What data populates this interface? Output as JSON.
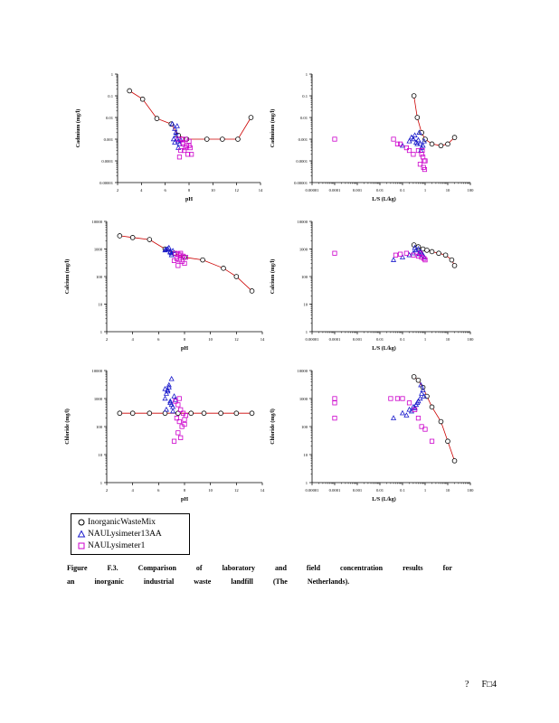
{
  "legend": {
    "items": [
      {
        "label": "InorganicWasteMix",
        "marker": "circle",
        "color": "#000000"
      },
      {
        "label": "NAULysimeter13AA",
        "marker": "triangle",
        "color": "#1a1acc"
      },
      {
        "label": "NAULysimeter1",
        "marker": "square",
        "color": "#cc00cc"
      }
    ]
  },
  "caption": {
    "words": [
      "Figure",
      "F.3.",
      "Comparison",
      "of",
      "laboratory",
      "and",
      "field",
      "concentration",
      "results",
      "for",
      "an",
      "inorganic",
      "industrial",
      "waste",
      "landfill",
      "(The",
      "Netherlands)."
    ]
  },
  "footer": {
    "mark": "?",
    "page": "F□4"
  },
  "colors": {
    "lab": "#000000",
    "lab_line": "#cc0000",
    "lys13": "#1a1acc",
    "lys1": "#cc00cc"
  },
  "chart_data": [
    {
      "type": "scatter",
      "ylabel": "Cadmium     (mg/l)",
      "xlabel": "pH",
      "x_scale": "linear",
      "xlim": [
        2,
        14
      ],
      "xticks": [
        "2",
        "4",
        "6",
        "8",
        "10",
        "12",
        "14"
      ],
      "y_scale": "log",
      "ylim": [
        1e-05,
        1
      ],
      "yticks": [
        "0.00001",
        "0.0001",
        "0.001",
        "0.01",
        "0.1",
        "1"
      ],
      "series": [
        {
          "name": "InorganicWasteMix",
          "marker": "circle",
          "line": true,
          "x": [
            3,
            4.1,
            5.3,
            6.5,
            7.1,
            7.8,
            9.5,
            10.8,
            12.1,
            13.2
          ],
          "y": [
            0.17,
            0.07,
            0.009,
            0.005,
            0.0015,
            0.001,
            0.001,
            0.001,
            0.001,
            0.01
          ]
        },
        {
          "name": "NAULysimeter13AA",
          "marker": "triangle",
          "line": false,
          "x": [
            6.6,
            6.8,
            6.9,
            7.0,
            7.1,
            7.2,
            6.7,
            7.0,
            6.9,
            7.3,
            7.1,
            6.8
          ],
          "y": [
            0.005,
            0.003,
            0.002,
            0.004,
            0.0008,
            0.0006,
            0.001,
            0.001,
            0.0015,
            0.0009,
            0.0004,
            0.0007
          ]
        },
        {
          "name": "NAULysimeter1",
          "marker": "square",
          "line": false,
          "x": [
            7.1,
            7.4,
            7.7,
            8.0,
            7.5,
            7.8,
            8.1,
            7.3,
            7.6,
            8.2,
            7.9,
            7.2,
            8.0,
            7.5,
            7.7
          ],
          "y": [
            0.001,
            0.001,
            0.001,
            0.0008,
            0.0006,
            0.0005,
            0.0004,
            0.0003,
            0.0003,
            0.0002,
            0.0002,
            0.00015,
            0.0005,
            0.0007,
            0.0004
          ]
        }
      ]
    },
    {
      "type": "scatter",
      "ylabel": "Cadmium     (mg/l)",
      "xlabel": "L/S     (L/kg)",
      "x_scale": "log",
      "xlim": [
        1e-05,
        100
      ],
      "xticks": [
        "0.00001",
        "0.0001",
        "0.001",
        "0.01",
        "0.1",
        "1",
        "10",
        "100"
      ],
      "y_scale": "log",
      "ylim": [
        1e-05,
        1
      ],
      "yticks": [
        "0.00001",
        "0.0001",
        "0.001",
        "0.01",
        "0.1",
        "1"
      ],
      "series": [
        {
          "name": "InorganicWasteMix",
          "marker": "circle",
          "line": true,
          "x": [
            0.32,
            0.45,
            0.7,
            1.0,
            2.0,
            5.0,
            10,
            20
          ],
          "y": [
            0.1,
            0.01,
            0.002,
            0.001,
            0.0006,
            0.0005,
            0.0006,
            0.0012
          ]
        },
        {
          "name": "NAULysimeter13AA",
          "marker": "triangle",
          "line": false,
          "x": [
            0.1,
            0.2,
            0.3,
            0.4,
            0.5,
            0.6,
            0.7,
            0.8,
            0.9,
            0.35,
            0.55,
            0.25,
            0.45,
            0.65
          ],
          "y": [
            0.0005,
            0.0008,
            0.001,
            0.0007,
            0.0009,
            0.0006,
            0.0004,
            0.0005,
            0.0008,
            0.0015,
            0.002,
            0.0012,
            0.0006,
            0.0003
          ]
        },
        {
          "name": "NAULysimeter1",
          "marker": "square",
          "line": false,
          "x": [
            0.0001,
            0.04,
            0.06,
            0.08,
            0.15,
            0.2,
            0.3,
            0.5,
            0.7,
            0.8,
            0.9,
            1.0,
            0.6,
            0.85,
            0.95,
            0.75
          ],
          "y": [
            0.001,
            0.001,
            0.0006,
            0.0006,
            0.0004,
            0.0003,
            0.0002,
            0.0003,
            0.0002,
            0.00015,
            0.0001,
            0.0001,
            7e-05,
            5e-05,
            4e-05,
            0.0003
          ]
        }
      ]
    },
    {
      "type": "scatter",
      "ylabel": "Calcium     (mg/l)",
      "xlabel": "pH",
      "x_scale": "linear",
      "xlim": [
        2,
        14
      ],
      "xticks": [
        "2",
        "4",
        "6",
        "8",
        "10",
        "12",
        "14"
      ],
      "y_scale": "log",
      "ylim": [
        1,
        10000
      ],
      "yticks": [
        "1",
        "10",
        "100",
        "1000",
        "10000"
      ],
      "series": [
        {
          "name": "InorganicWasteMix",
          "marker": "circle",
          "line": true,
          "x": [
            3,
            4.0,
            5.3,
            6.5,
            7.2,
            8.0,
            9.4,
            11.0,
            12.0,
            13.2
          ],
          "y": [
            3000,
            2600,
            2200,
            1000,
            700,
            500,
            400,
            200,
            100,
            30
          ]
        },
        {
          "name": "NAULysimeter13AA",
          "marker": "triangle",
          "line": false,
          "x": [
            6.5,
            6.7,
            6.8,
            6.9,
            7.0,
            7.1,
            6.6,
            6.9,
            7.0
          ],
          "y": [
            900,
            1000,
            1100,
            800,
            700,
            850,
            950,
            750,
            600
          ]
        },
        {
          "name": "NAULysimeter1",
          "marker": "square",
          "line": false,
          "x": [
            7.3,
            7.5,
            7.7,
            7.9,
            8.1,
            7.4,
            7.6,
            7.8,
            8.0,
            7.5,
            7.7,
            7.2
          ],
          "y": [
            700,
            650,
            600,
            550,
            500,
            450,
            400,
            350,
            300,
            250,
            700,
            380
          ]
        }
      ]
    },
    {
      "type": "scatter",
      "ylabel": "Calcium     (mg/l)",
      "xlabel": "L/S     (L/kg)",
      "x_scale": "log",
      "xlim": [
        1e-05,
        100
      ],
      "xticks": [
        "0.00001",
        "0.0001",
        "0.001",
        "0.01",
        "0.1",
        "1",
        "10",
        "100"
      ],
      "y_scale": "log",
      "ylim": [
        1,
        10000
      ],
      "yticks": [
        "1",
        "10",
        "100",
        "1000",
        "10000"
      ],
      "series": [
        {
          "name": "InorganicWasteMix",
          "marker": "circle",
          "line": true,
          "x": [
            0.32,
            0.5,
            0.8,
            1.2,
            2.0,
            4.0,
            8.0,
            15,
            20
          ],
          "y": [
            1400,
            1200,
            1000,
            900,
            800,
            700,
            600,
            400,
            250
          ]
        },
        {
          "name": "NAULysimeter13AA",
          "marker": "triangle",
          "line": false,
          "x": [
            0.04,
            0.1,
            0.2,
            0.3,
            0.4,
            0.5,
            0.6,
            0.7,
            0.8,
            0.9,
            0.35,
            0.55
          ],
          "y": [
            400,
            500,
            600,
            700,
            900,
            1000,
            800,
            700,
            600,
            500,
            1100,
            650
          ]
        },
        {
          "name": "NAULysimeter1",
          "marker": "square",
          "line": false,
          "x": [
            0.0001,
            0.05,
            0.08,
            0.15,
            0.3,
            0.5,
            0.7,
            0.9,
            1.0,
            0.6
          ],
          "y": [
            700,
            600,
            650,
            700,
            600,
            550,
            500,
            450,
            400,
            700
          ]
        }
      ]
    },
    {
      "type": "scatter",
      "ylabel": "Chloride     (mg/l)",
      "xlabel": "pH",
      "x_scale": "linear",
      "xlim": [
        2,
        14
      ],
      "xticks": [
        "2",
        "4",
        "6",
        "8",
        "10",
        "12",
        "14"
      ],
      "y_scale": "log",
      "ylim": [
        1,
        10000
      ],
      "yticks": [
        "1",
        "10",
        "100",
        "1000",
        "10000"
      ],
      "series": [
        {
          "name": "InorganicWasteMix",
          "marker": "circle",
          "line": true,
          "x": [
            3,
            4.0,
            5.3,
            6.5,
            7.5,
            8.5,
            9.5,
            10.8,
            12.0,
            13.2
          ],
          "y": [
            300,
            300,
            300,
            300,
            300,
            300,
            300,
            300,
            300,
            300
          ]
        },
        {
          "name": "NAULysimeter13AA",
          "marker": "triangle",
          "line": false,
          "x": [
            6.5,
            6.6,
            6.7,
            6.8,
            6.9,
            7.0,
            7.1,
            7.2,
            6.6,
            6.8,
            7.0,
            6.9,
            6.7,
            7.3,
            6.5,
            7.1
          ],
          "y": [
            1000,
            1500,
            2000,
            2500,
            800,
            600,
            500,
            1200,
            400,
            3000,
            5000,
            700,
            1800,
            900,
            2200,
            350
          ]
        },
        {
          "name": "NAULysimeter1",
          "marker": "square",
          "line": false,
          "x": [
            7.3,
            7.5,
            7.7,
            7.9,
            8.1,
            7.4,
            7.6,
            7.8,
            8.0,
            7.5,
            7.7,
            7.2,
            7.6,
            8.0
          ],
          "y": [
            800,
            600,
            400,
            300,
            250,
            200,
            150,
            100,
            180,
            60,
            40,
            30,
            1000,
            120
          ]
        }
      ]
    },
    {
      "type": "scatter",
      "ylabel": "Chloride     (mg/l)",
      "xlabel": "L/S     (L/kg)",
      "x_scale": "log",
      "xlim": [
        1e-05,
        100
      ],
      "xticks": [
        "0.00001",
        "0.0001",
        "0.001",
        "0.01",
        "0.1",
        "1",
        "10",
        "100"
      ],
      "y_scale": "log",
      "ylim": [
        1,
        10000
      ],
      "yticks": [
        "1",
        "10",
        "100",
        "1000",
        "10000"
      ],
      "series": [
        {
          "name": "InorganicWasteMix",
          "marker": "circle",
          "line": true,
          "x": [
            0.32,
            0.5,
            0.8,
            1.2,
            2.0,
            5.0,
            10,
            20
          ],
          "y": [
            6000,
            4500,
            2500,
            1200,
            500,
            150,
            30,
            6
          ]
        },
        {
          "name": "NAULysimeter13AA",
          "marker": "triangle",
          "line": false,
          "x": [
            0.04,
            0.1,
            0.15,
            0.2,
            0.3,
            0.4,
            0.5,
            0.6,
            0.7,
            0.8,
            0.9,
            0.25,
            0.45,
            0.65,
            0.35
          ],
          "y": [
            200,
            300,
            250,
            400,
            500,
            600,
            800,
            1000,
            1500,
            2000,
            1200,
            350,
            700,
            3000,
            450
          ]
        },
        {
          "name": "NAULysimeter1",
          "marker": "square",
          "line": false,
          "x": [
            0.0001,
            0.0001,
            0.0001,
            0.03,
            0.06,
            0.1,
            0.2,
            0.35,
            0.5,
            0.7,
            1.0,
            2.0
          ],
          "y": [
            1000,
            700,
            200,
            1000,
            1000,
            1000,
            700,
            400,
            200,
            100,
            80,
            30
          ]
        }
      ]
    }
  ]
}
